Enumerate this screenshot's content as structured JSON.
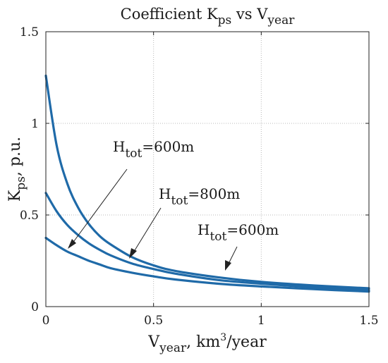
{
  "chart_data": {
    "type": "line",
    "title": {
      "main": "Coefficient K",
      "sub1": "ps",
      "mid": " vs V",
      "sub2": "year"
    },
    "xlabel": {
      "main": "V",
      "sub": "year",
      "rest": ",  km",
      "sup": "3",
      "tail": "/year"
    },
    "ylabel": {
      "main": "K",
      "sub": "ps",
      "rest": ", p.u."
    },
    "xlim": [
      0,
      1.5
    ],
    "ylim": [
      0,
      1.5
    ],
    "xticks": [
      "0",
      "0.5",
      "1",
      "1.5"
    ],
    "yticks": [
      "0",
      "0.5",
      "1",
      "1.5"
    ],
    "grid": true,
    "line_color": "#1f6aa8",
    "x": [
      0.0,
      0.05,
      0.1,
      0.15,
      0.2,
      0.25,
      0.3,
      0.4,
      0.5,
      0.6,
      0.8,
      1.0,
      1.25,
      1.5
    ],
    "series": [
      {
        "values": [
          1.26,
          0.88,
          0.67,
          0.54,
          0.45,
          0.385,
          0.34,
          0.27,
          0.225,
          0.195,
          0.16,
          0.135,
          0.115,
          0.1
        ]
      },
      {
        "values": [
          0.62,
          0.52,
          0.445,
          0.39,
          0.345,
          0.31,
          0.28,
          0.235,
          0.205,
          0.18,
          0.145,
          0.125,
          0.105,
          0.09
        ]
      },
      {
        "values": [
          0.375,
          0.335,
          0.3,
          0.275,
          0.25,
          0.23,
          0.21,
          0.185,
          0.165,
          0.148,
          0.125,
          0.11,
          0.095,
          0.082
        ]
      }
    ],
    "annotations": [
      {
        "main": "H",
        "sub": "tot",
        "value": "=600m"
      },
      {
        "main": "H",
        "sub": "tot",
        "value": "=800m"
      },
      {
        "main": "H",
        "sub": "tot",
        "value": "=600m"
      }
    ]
  }
}
